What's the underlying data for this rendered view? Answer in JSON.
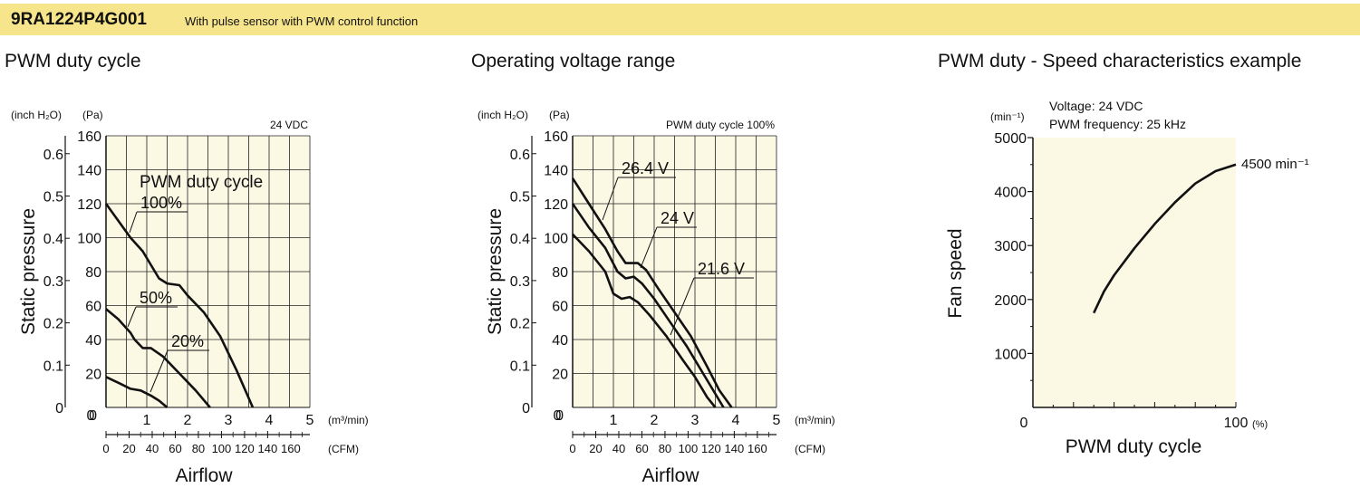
{
  "header": {
    "model": "9RA1224P4G001",
    "description": "With pulse sensor with PWM control function",
    "color": "#f7e58c"
  },
  "chart_bg": "#fbf8e4",
  "chart_data": [
    {
      "type": "line",
      "title": "PWM duty cycle",
      "annotation": "24 VDC",
      "legend_title": "PWM duty cycle",
      "ylabel": "Static pressure",
      "y_unit_pa": "(Pa)",
      "y_unit_inch": "(inch H₂O)",
      "xlabel": "Airflow",
      "x_unit_m3": "(m³/min)",
      "x_unit_cfm": "(CFM)",
      "xlim": [
        0,
        5
      ],
      "ylim": [
        0,
        160
      ],
      "x_ticks": [
        "1",
        "2",
        "3",
        "4",
        "5"
      ],
      "x_zero": "0",
      "y_ticks_pa": [
        "20",
        "40",
        "60",
        "80",
        "100",
        "120",
        "140",
        "160"
      ],
      "y_zero_pa": "0",
      "y_ticks_inch": [
        "0.1",
        "0.2",
        "0.3",
        "0.4",
        "0.5",
        "0.6"
      ],
      "y_zero_inch": "0",
      "cfm_ticks": [
        "0",
        "20",
        "40",
        "60",
        "80",
        "100",
        "120",
        "140",
        "160"
      ],
      "series": [
        {
          "name": "100%",
          "x": [
            0,
            0.3,
            0.6,
            0.9,
            1.1,
            1.3,
            1.5,
            1.8,
            2.0,
            2.4,
            2.8,
            3.2,
            3.6
          ],
          "y": [
            120,
            110,
            100,
            92,
            84,
            76,
            73,
            72,
            66,
            56,
            42,
            22,
            0
          ]
        },
        {
          "name": "50%",
          "x": [
            0,
            0.3,
            0.6,
            0.7,
            0.9,
            1.1,
            1.4,
            1.8,
            2.2,
            2.55
          ],
          "y": [
            58,
            52,
            44,
            40,
            35,
            35,
            30,
            20,
            10,
            0
          ]
        },
        {
          "name": "20%",
          "x": [
            0,
            0.35,
            0.6,
            0.85,
            1.1,
            1.3,
            1.5
          ],
          "y": [
            18,
            14,
            11,
            10,
            7,
            4,
            0
          ]
        }
      ]
    },
    {
      "type": "line",
      "title": "Operating voltage range",
      "annotation": "PWM duty cycle 100%",
      "ylabel": "Static pressure",
      "y_unit_pa": "(Pa)",
      "y_unit_inch": "(inch H₂O)",
      "xlabel": "Airflow",
      "x_unit_m3": "(m³/min)",
      "x_unit_cfm": "(CFM)",
      "xlim": [
        0,
        5
      ],
      "ylim": [
        0,
        160
      ],
      "x_ticks": [
        "1",
        "2",
        "3",
        "4",
        "5"
      ],
      "x_zero": "0",
      "y_ticks_pa": [
        "20",
        "40",
        "60",
        "80",
        "100",
        "120",
        "140",
        "160"
      ],
      "y_zero_pa": "0",
      "y_ticks_inch": [
        "0.1",
        "0.2",
        "0.3",
        "0.4",
        "0.5",
        "0.6"
      ],
      "y_zero_inch": "0",
      "cfm_ticks": [
        "0",
        "20",
        "40",
        "60",
        "80",
        "100",
        "120",
        "140",
        "160"
      ],
      "series": [
        {
          "name": "26.4 V",
          "x": [
            0,
            0.4,
            0.8,
            1.1,
            1.3,
            1.6,
            1.8,
            2.1,
            2.5,
            2.9,
            3.3,
            3.6,
            3.9
          ],
          "y": [
            135,
            120,
            105,
            92,
            85,
            85,
            81,
            70,
            56,
            42,
            24,
            10,
            0
          ]
        },
        {
          "name": "24 V",
          "x": [
            0,
            0.4,
            0.8,
            1.1,
            1.3,
            1.5,
            1.7,
            2.0,
            2.4,
            2.8,
            3.2,
            3.5,
            3.7
          ],
          "y": [
            120,
            106,
            94,
            80,
            76,
            77,
            73,
            64,
            50,
            36,
            20,
            8,
            0
          ]
        },
        {
          "name": "21.6 V",
          "x": [
            0,
            0.4,
            0.8,
            1.0,
            1.2,
            1.4,
            1.6,
            1.9,
            2.3,
            2.7,
            3.0,
            3.3,
            3.5
          ],
          "y": [
            102,
            92,
            80,
            67,
            64,
            65,
            62,
            54,
            42,
            28,
            18,
            6,
            0
          ]
        }
      ]
    },
    {
      "type": "line",
      "title": "PWM duty - Speed characteristics example",
      "info_voltage": "Voltage: 24 VDC",
      "info_frequency": "PWM frequency: 25 kHz",
      "ylabel": "Fan speed",
      "y_unit": "(min⁻¹)",
      "xlabel": "PWM duty cycle",
      "x_unit": "(%)",
      "xlim": [
        0,
        100
      ],
      "ylim": [
        0,
        5000
      ],
      "x_ticks": [
        "100"
      ],
      "x_zero": "0",
      "y_ticks": [
        "1000",
        "2000",
        "3000",
        "4000",
        "5000"
      ],
      "end_label": "4500 min⁻¹",
      "series": [
        {
          "x": [
            30,
            35,
            40,
            50,
            60,
            70,
            80,
            90,
            100
          ],
          "y": [
            1750,
            2150,
            2450,
            2950,
            3400,
            3800,
            4150,
            4380,
            4500
          ]
        }
      ]
    }
  ]
}
